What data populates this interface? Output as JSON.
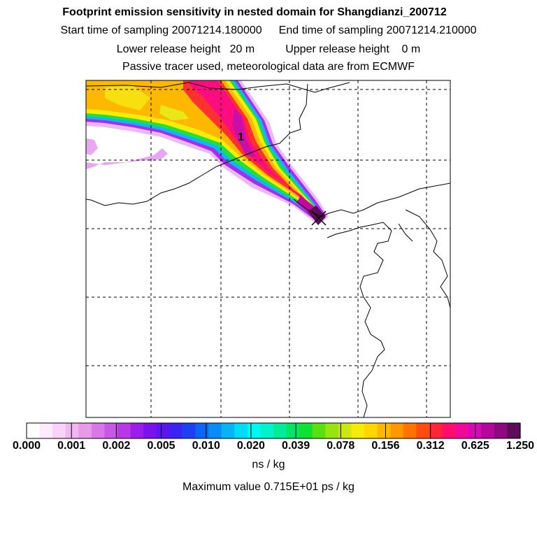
{
  "title": "Footprint emission sensitivity in nested domain for Shangdianzi_200712",
  "sampling": {
    "start": "Start time of sampling 20071214.180000",
    "end": "End time of sampling 20071214.210000"
  },
  "release": {
    "lower": "Lower release height   20 m",
    "upper": "Upper release height    0 m"
  },
  "note": "Passive tracer used, meteorological data are from ECMWF",
  "map": {
    "release_label": "1",
    "receptor_marker": "x-cross-icon"
  },
  "colorbar": {
    "colors": [
      "#ffffff",
      "#fdeafd",
      "#f8d2f8",
      "#f0b8f0",
      "#e79ae8",
      "#d878e6",
      "#c858e6",
      "#b838e8",
      "#9c1cec",
      "#7a12ee",
      "#5c14f0",
      "#3a24f2",
      "#1e40f4",
      "#0c66f4",
      "#0a8cf4",
      "#06b4f4",
      "#00dcf8",
      "#00f8f0",
      "#00f2c8",
      "#00ec98",
      "#00e466",
      "#10e030",
      "#58e010",
      "#98e410",
      "#cce810",
      "#f4ec08",
      "#ffd600",
      "#ffb800",
      "#ff9800",
      "#ff7400",
      "#ff4c10",
      "#ff2438",
      "#ff0c6c",
      "#f00898",
      "#d808b4",
      "#b4089c",
      "#8c0a7e",
      "#5c0c58"
    ],
    "tick_labels": [
      "0.000",
      "0.001",
      "0.002",
      "0.005",
      "0.010",
      "0.020",
      "0.039",
      "0.078",
      "0.156",
      "0.312",
      "0.625",
      "1.250"
    ],
    "units": "ns / kg"
  },
  "max_value": "Maximum value  0.715E+01 ps / kg"
}
